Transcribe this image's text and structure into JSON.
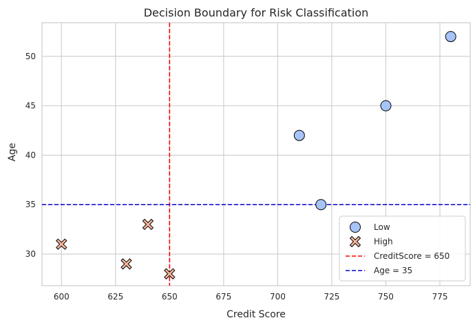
{
  "chart_data": {
    "type": "scatter",
    "title": "Decision Boundary for Risk Classification",
    "xlabel": "Credit Score",
    "ylabel": "Age",
    "xlim": [
      591,
      789
    ],
    "ylim": [
      26.8,
      53.4
    ],
    "xticks": [
      600,
      625,
      650,
      675,
      700,
      725,
      750,
      775
    ],
    "yticks": [
      30,
      35,
      40,
      45,
      50
    ],
    "grid": true,
    "legend_position": "bottom-right",
    "series": [
      {
        "name": "Low",
        "marker": "circle",
        "color": "#a6c4f7",
        "points": [
          {
            "x": 710,
            "y": 42
          },
          {
            "x": 720,
            "y": 35
          },
          {
            "x": 750,
            "y": 45
          },
          {
            "x": 780,
            "y": 52
          }
        ]
      },
      {
        "name": "High",
        "marker": "x",
        "color": "#f7b69a",
        "points": [
          {
            "x": 600,
            "y": 31
          },
          {
            "x": 630,
            "y": 29
          },
          {
            "x": 640,
            "y": 33
          },
          {
            "x": 650,
            "y": 28
          }
        ]
      }
    ],
    "reference_lines": [
      {
        "name": "CreditScore = 650",
        "orientation": "vertical",
        "value": 650,
        "color": "#ff0000",
        "style": "dashed"
      },
      {
        "name": "Age = 35",
        "orientation": "horizontal",
        "value": 35,
        "color": "#0000cc",
        "style": "dashed"
      }
    ]
  }
}
